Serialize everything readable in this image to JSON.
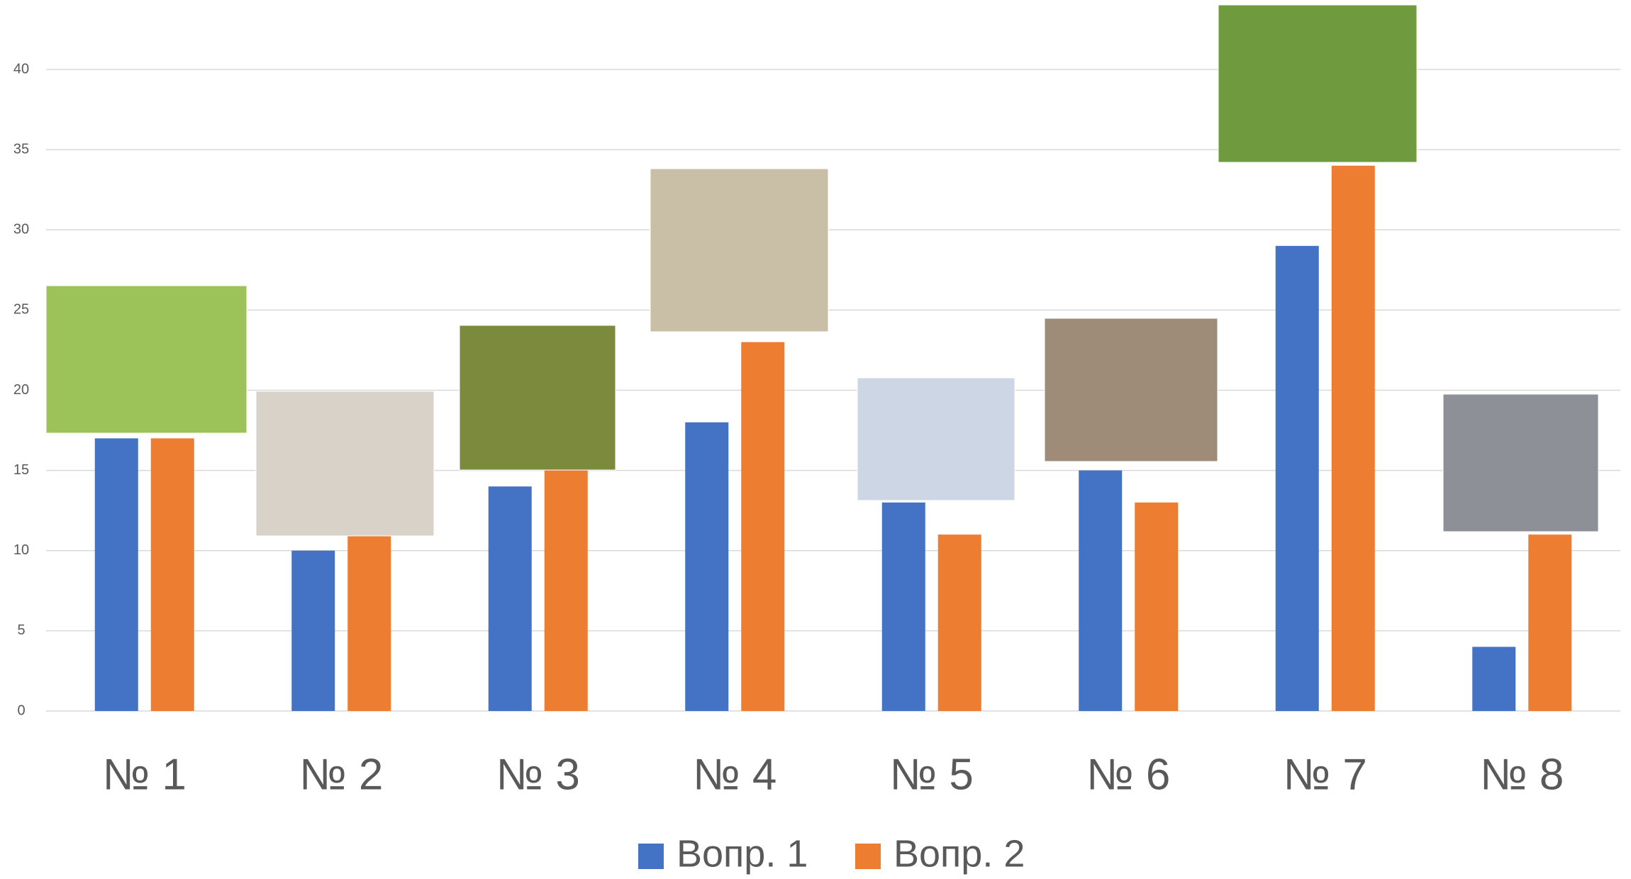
{
  "chart_data": {
    "type": "bar",
    "categories": [
      "№ 1",
      "№ 2",
      "№ 3",
      "№ 4",
      "№ 5",
      "№ 6",
      "№ 7",
      "№ 8"
    ],
    "series": [
      {
        "name": "Вопр. 1",
        "color": "#4472c4",
        "values": [
          17,
          10,
          14,
          18,
          13,
          15,
          29,
          4
        ]
      },
      {
        "name": "Вопр. 2",
        "color": "#ed7d31",
        "values": [
          17,
          11,
          15,
          23,
          11,
          13,
          34,
          11
        ]
      }
    ],
    "ylim": [
      0,
      40
    ],
    "yticks": [
      0,
      5,
      10,
      15,
      20,
      25,
      30,
      35,
      40
    ],
    "grid": true,
    "legend": "bottom"
  }
}
